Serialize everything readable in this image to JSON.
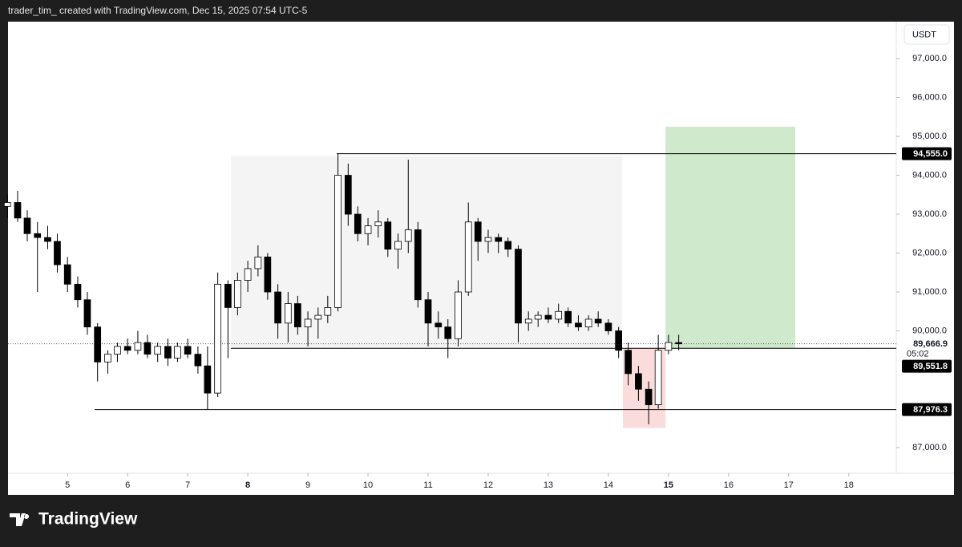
{
  "chart_data": {
    "type": "candlestick",
    "header": "trader_tim_ created with TradingView.com, Dec 15, 2025 07:54 UTC-5",
    "currency": "USDT",
    "brand": "TradingView",
    "up_color": "#ffffff",
    "down_color": "#000000",
    "x": [
      4.0,
      4.17,
      4.33,
      4.5,
      4.67,
      4.83,
      5.0,
      5.17,
      5.33,
      5.5,
      5.67,
      5.83,
      6.0,
      6.17,
      6.33,
      6.5,
      6.67,
      6.83,
      7.0,
      7.17,
      7.33,
      7.5,
      7.67,
      7.83,
      8.0,
      8.17,
      8.33,
      8.5,
      8.67,
      8.83,
      9.0,
      9.17,
      9.33,
      9.5,
      9.67,
      9.83,
      10.0,
      10.17,
      10.33,
      10.5,
      10.67,
      10.83,
      11.0,
      11.17,
      11.33,
      11.5,
      11.67,
      11.83,
      12.0,
      12.17,
      12.33,
      12.5,
      12.67,
      12.83,
      13.0,
      13.17,
      13.33,
      13.5,
      13.67,
      13.83,
      14.0,
      14.17,
      14.33,
      14.5,
      14.67,
      14.83,
      15.0,
      15.17
    ],
    "open": [
      93200,
      93300,
      92900,
      92500,
      92400,
      92300,
      91700,
      91200,
      90800,
      90100,
      89200,
      89400,
      89600,
      89500,
      89700,
      89400,
      89600,
      89300,
      89600,
      89400,
      89100,
      88400,
      91200,
      90600,
      91300,
      91600,
      91900,
      91000,
      90200,
      90700,
      90100,
      90300,
      90400,
      90600,
      94000,
      93000,
      92500,
      92700,
      92800,
      92100,
      92300,
      92600,
      90800,
      90200,
      90100,
      89800,
      91000,
      92800,
      92300,
      92400,
      92300,
      92100,
      90200,
      90300,
      90400,
      90300,
      90500,
      90200,
      90100,
      90300,
      90200,
      90000,
      89500,
      88900,
      88500,
      88100,
      89500,
      89700
    ],
    "high": [
      93500,
      93600,
      93100,
      92800,
      92700,
      92500,
      91900,
      91400,
      91000,
      90200,
      89500,
      89700,
      89800,
      90000,
      89900,
      89700,
      89800,
      89700,
      89800,
      89600,
      89600,
      91500,
      91300,
      91500,
      91800,
      92200,
      92000,
      91200,
      91000,
      90900,
      90500,
      90600,
      90900,
      94555,
      94300,
      93200,
      92900,
      93100,
      92900,
      92500,
      94400,
      92800,
      91000,
      90500,
      90300,
      91300,
      93300,
      92900,
      92600,
      92500,
      92400,
      92200,
      90500,
      90500,
      90600,
      90700,
      90600,
      90400,
      90400,
      90500,
      90300,
      90100,
      89700,
      89100,
      88700,
      89900,
      89900,
      89900
    ],
    "low": [
      92900,
      92800,
      92300,
      91000,
      92100,
      91500,
      91000,
      90600,
      89900,
      88700,
      88900,
      89200,
      89400,
      89400,
      89300,
      89200,
      89100,
      89200,
      89300,
      88900,
      87976.3,
      88300,
      89300,
      90400,
      91000,
      91400,
      90800,
      89800,
      89700,
      89900,
      89600,
      89800,
      90200,
      90500,
      92700,
      92300,
      92200,
      92400,
      91900,
      91600,
      92000,
      90600,
      89600,
      89800,
      89300,
      89600,
      90900,
      91800,
      92000,
      92000,
      91900,
      89700,
      90000,
      90100,
      90200,
      90200,
      90100,
      90000,
      90000,
      90100,
      89900,
      89300,
      88600,
      88200,
      87600,
      88000,
      89400,
      89500
    ],
    "close": [
      93300,
      92900,
      92500,
      92400,
      92300,
      91700,
      91200,
      90800,
      90100,
      89200,
      89400,
      89600,
      89500,
      89700,
      89400,
      89600,
      89300,
      89600,
      89400,
      89100,
      88400,
      91200,
      90600,
      91300,
      91600,
      91900,
      91000,
      90200,
      90700,
      90100,
      90300,
      90400,
      90600,
      94000,
      93000,
      92500,
      92700,
      92800,
      92100,
      92300,
      92600,
      90800,
      90200,
      90100,
      89800,
      91000,
      92800,
      92300,
      92400,
      92300,
      92100,
      90200,
      90300,
      90400,
      90300,
      90500,
      90200,
      90100,
      90300,
      90200,
      90000,
      89500,
      88900,
      88500,
      88100,
      89500,
      89700,
      89666.9
    ],
    "xlim": [
      4.01,
      18.79
    ],
    "ylim": [
      86340,
      97950
    ],
    "xticks": [
      5,
      6,
      7,
      8,
      9,
      10,
      11,
      12,
      13,
      14,
      15,
      16,
      17,
      18
    ],
    "bold_xticks": [
      8,
      15
    ],
    "yticks": [
      {
        "value": 87000,
        "label": "87,000.0"
      },
      {
        "value": 90000,
        "label": "90,000.0"
      },
      {
        "value": 91000,
        "label": "91,000.0"
      },
      {
        "value": 92000,
        "label": "92,000.0"
      },
      {
        "value": 93000,
        "label": "93,000.0"
      },
      {
        "value": 94000,
        "label": "94,000.0"
      },
      {
        "value": 95000,
        "label": "95,000.0"
      },
      {
        "value": 96000,
        "label": "96,000.0"
      },
      {
        "value": 97000,
        "label": "97,000.0"
      }
    ],
    "zones": [
      {
        "x": [
          7.72,
          14.23
        ],
        "y": [
          89551.8,
          94500
        ],
        "color": "#f4f4f4"
      },
      {
        "x": [
          14.95,
          17.11
        ],
        "y": [
          89551.8,
          95250
        ],
        "color": "#cfe9cc"
      },
      {
        "x": [
          14.24,
          14.95
        ],
        "y": [
          87500,
          89551.8
        ],
        "color": "#fbdcdc"
      }
    ],
    "levels": [
      {
        "start": 9.48,
        "value": 94555,
        "label": "94,555.0"
      },
      {
        "start": 7.72,
        "value": 89551.8,
        "label": "89,551.8"
      },
      {
        "start": 5.45,
        "value": 87976.3,
        "label": "87,976.3"
      }
    ],
    "last": {
      "value": 89666.9,
      "label": "89,666.9",
      "countdown": "05:02"
    }
  }
}
